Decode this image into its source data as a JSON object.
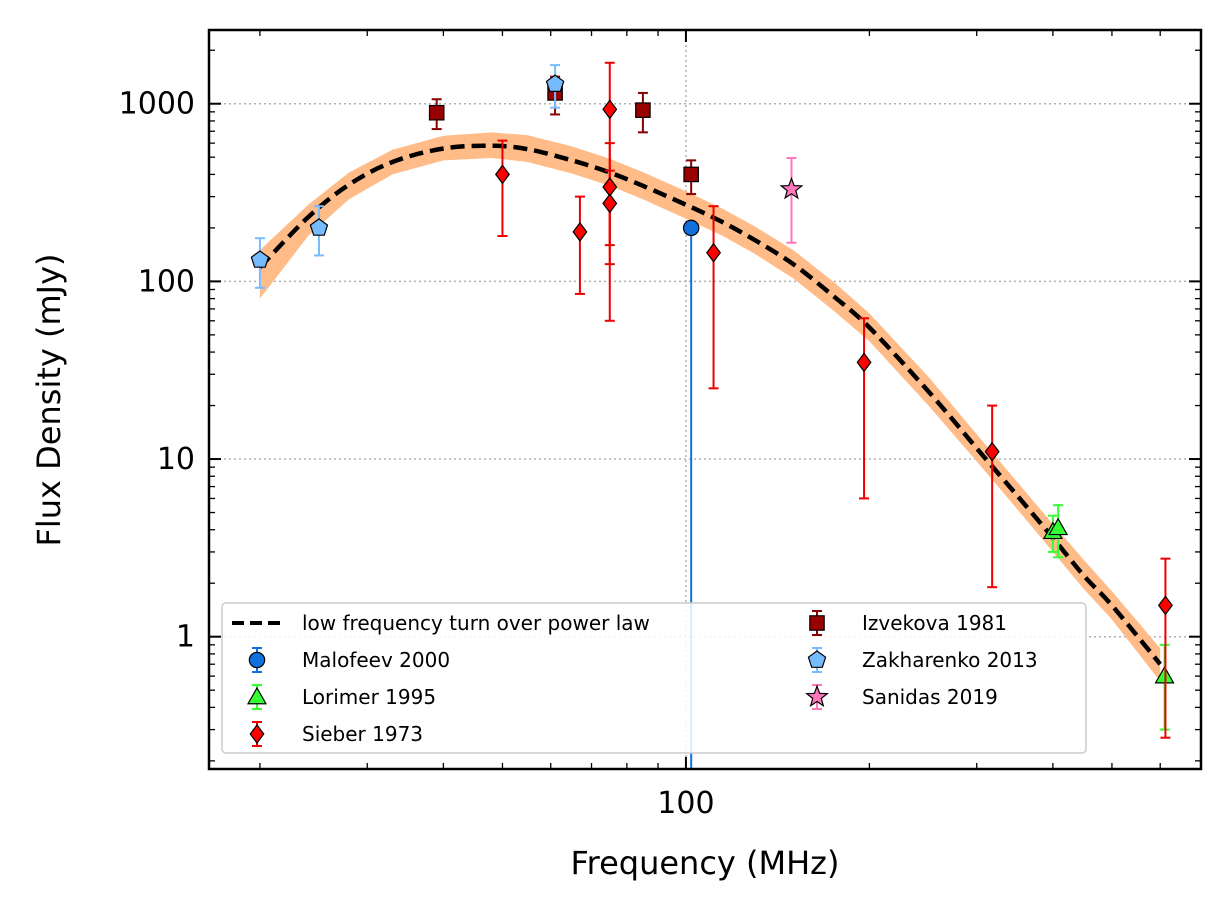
{
  "chart_data": {
    "type": "scatter",
    "title": "",
    "xlabel": "Frequency (MHz)",
    "ylabel": "Flux Density (mJy)",
    "xscale": "log",
    "yscale": "log",
    "xlim": [
      16.5,
      700
    ],
    "ylim": [
      0.18,
      2600
    ],
    "x_ticks": [
      {
        "value": 100,
        "label": "100"
      }
    ],
    "y_ticks": [
      {
        "value": 1,
        "label": "1"
      },
      {
        "value": 10,
        "label": "10"
      },
      {
        "value": 100,
        "label": "100"
      },
      {
        "value": 1000,
        "label": "1000"
      }
    ],
    "grid": true,
    "legend_position": "lower-left",
    "legend_columns": 2,
    "model": {
      "name": "low frequency turn over power law",
      "line_color": "#000000",
      "band_color": "#ffbb88",
      "x": [
        20,
        24,
        28,
        33,
        40,
        48,
        55,
        65,
        75,
        85,
        100,
        115,
        130,
        150,
        175,
        200,
        250,
        300,
        350,
        400,
        450,
        500,
        600
      ],
      "y": [
        120,
        230,
        350,
        470,
        560,
        580,
        555,
        480,
        410,
        345,
        270,
        215,
        170,
        125,
        82,
        55,
        24,
        11.5,
        6.2,
        3.6,
        2.2,
        1.5,
        0.7
      ],
      "band_low": [
        80,
        180,
        290,
        400,
        480,
        495,
        470,
        405,
        345,
        290,
        225,
        180,
        142,
        104,
        68,
        46,
        20,
        9.7,
        5.2,
        3.0,
        1.85,
        1.25,
        0.56
      ],
      "band_high": [
        150,
        270,
        410,
        550,
        660,
        690,
        665,
        575,
        490,
        412,
        322,
        256,
        203,
        150,
        99,
        66,
        29,
        13.8,
        7.4,
        4.3,
        2.7,
        1.8,
        0.86
      ]
    },
    "series": [
      {
        "name": "Malofeev 2000",
        "marker": "circle",
        "color": "#1170dd",
        "ecolor": "#1170dd",
        "points": [
          {
            "x": 102,
            "y": 200,
            "ylo": 0.001,
            "yhi": 200
          }
        ]
      },
      {
        "name": "Lorimer 1995",
        "marker": "triangle",
        "color": "#33ff33",
        "ecolor": "#33ff33",
        "points": [
          {
            "x": 400,
            "y": 3.9,
            "ylo": 3.0,
            "yhi": 4.8
          },
          {
            "x": 408,
            "y": 4.1,
            "ylo": 2.8,
            "yhi": 5.5
          },
          {
            "x": 610,
            "y": 0.6,
            "ylo": 0.3,
            "yhi": 0.9
          }
        ]
      },
      {
        "name": "Sieber 1973",
        "marker": "diamond",
        "color": "#ff0000",
        "ecolor": "#ee0000",
        "points": [
          {
            "x": 50,
            "y": 400,
            "ylo": 180,
            "yhi": 620
          },
          {
            "x": 67,
            "y": 190,
            "ylo": 85,
            "yhi": 300
          },
          {
            "x": 75,
            "y": 930,
            "ylo": 160,
            "yhi": 1700
          },
          {
            "x": 75,
            "y": 340,
            "ylo": 125,
            "yhi": 600
          },
          {
            "x": 75,
            "y": 275,
            "ylo": 60,
            "yhi": 420
          },
          {
            "x": 111,
            "y": 145,
            "ylo": 25,
            "yhi": 265
          },
          {
            "x": 196,
            "y": 35,
            "ylo": 6,
            "yhi": 62
          },
          {
            "x": 318,
            "y": 11,
            "ylo": 1.9,
            "yhi": 20
          },
          {
            "x": 612,
            "y": 1.5,
            "ylo": 0.27,
            "yhi": 2.75
          }
        ]
      },
      {
        "name": "Izvekova 1981",
        "marker": "square",
        "color": "#990000",
        "ecolor": "#880000",
        "points": [
          {
            "x": 39,
            "y": 890,
            "ylo": 720,
            "yhi": 1060
          },
          {
            "x": 61,
            "y": 1150,
            "ylo": 870,
            "yhi": 1420
          },
          {
            "x": 85,
            "y": 920,
            "ylo": 690,
            "yhi": 1150
          },
          {
            "x": 102,
            "y": 400,
            "ylo": 310,
            "yhi": 480
          }
        ]
      },
      {
        "name": "Zakharenko 2013",
        "marker": "pentagon",
        "color": "#77bbff",
        "ecolor": "#77bbff",
        "points": [
          {
            "x": 20,
            "y": 132,
            "ylo": 92,
            "yhi": 175
          },
          {
            "x": 25,
            "y": 200,
            "ylo": 140,
            "yhi": 265
          },
          {
            "x": 61,
            "y": 1290,
            "ylo": 950,
            "yhi": 1650
          }
        ]
      },
      {
        "name": "Sanidas 2019",
        "marker": "star",
        "color": "#ff77bb",
        "ecolor": "#ff77bb",
        "points": [
          {
            "x": 149,
            "y": 330,
            "ylo": 165,
            "yhi": 495
          }
        ]
      }
    ]
  }
}
